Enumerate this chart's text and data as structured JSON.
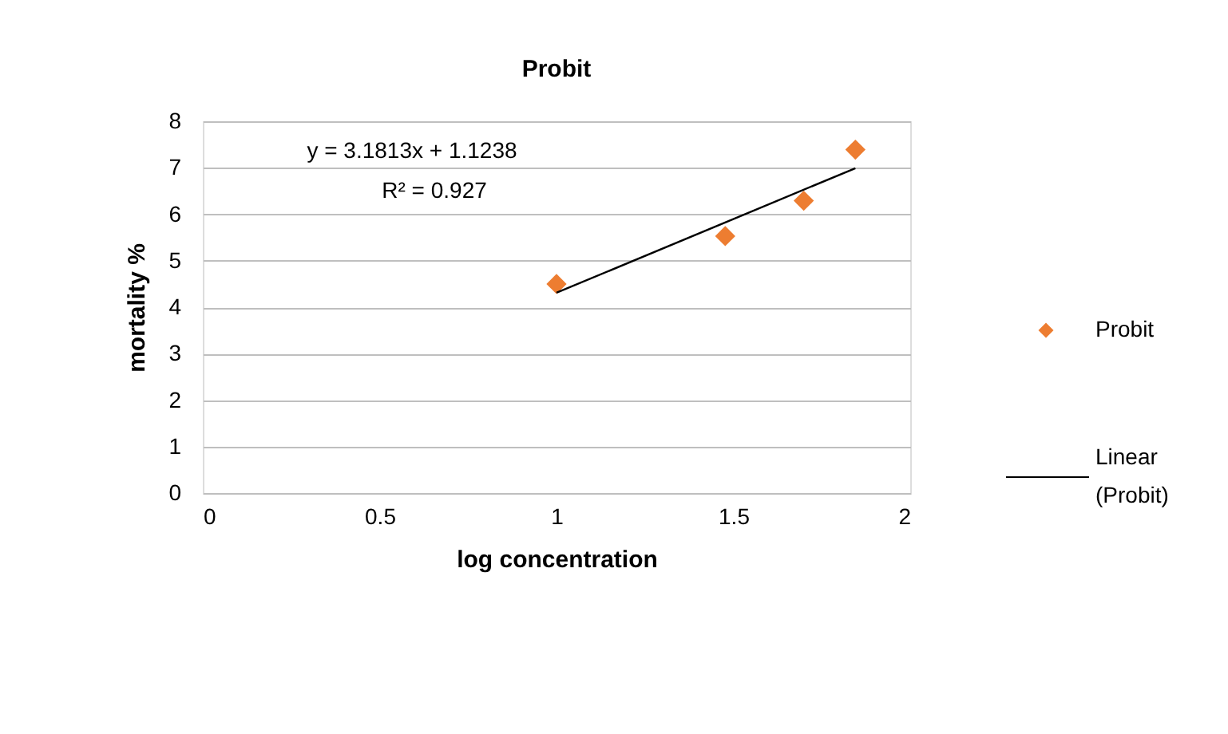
{
  "chart_data": {
    "type": "scatter",
    "title": "Probit",
    "xlabel": "log concentration",
    "ylabel": "mortality %",
    "xlim": [
      0,
      2
    ],
    "xticks": [
      0,
      0.5,
      1,
      1.5,
      2
    ],
    "ylim": [
      0,
      8
    ],
    "yticks": [
      0,
      1,
      2,
      3,
      4,
      5,
      6,
      7,
      8
    ],
    "grid": "y",
    "legend": "right",
    "series": [
      {
        "name": "Probit",
        "color": "#ed7d31",
        "marker": "diamond",
        "x": [
          1,
          1.477,
          1.699,
          1.845
        ],
        "values": [
          4.5,
          5.53,
          6.29,
          7.39
        ]
      },
      {
        "name": "Linear (Probit)",
        "type": "line",
        "marker": "none",
        "color": "#000000",
        "x": [
          1,
          1.845
        ],
        "values": [
          4.31,
          6.99
        ]
      }
    ],
    "annotations": [
      "y = 3.1813x + 1.1238",
      "R² = 0.927"
    ]
  }
}
